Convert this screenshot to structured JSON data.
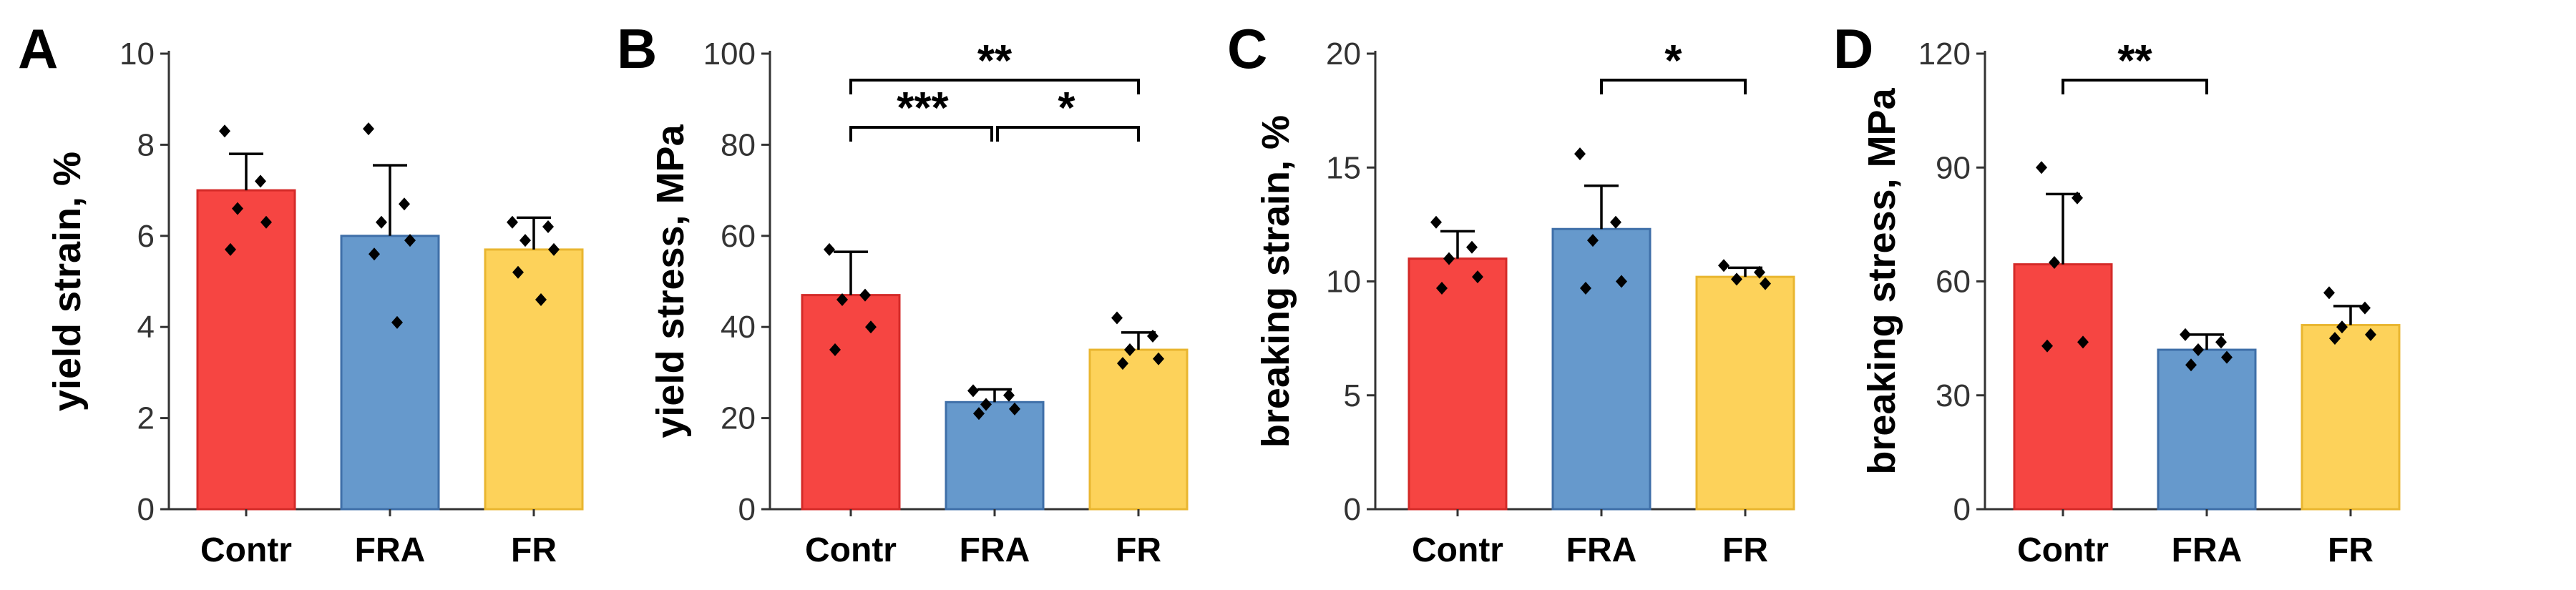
{
  "colors": {
    "Contr": "#f64542",
    "FRA": "#6699cc",
    "FR": "#fdd25a"
  },
  "edge_colors": {
    "Contr": "#d42a28",
    "FRA": "#3f6fa8",
    "FR": "#e9b630"
  },
  "chart_data": [
    {
      "type": "bar",
      "panel": "A",
      "ylabel": "yield strain, %",
      "categories": [
        "Contr",
        "FRA",
        "FR"
      ],
      "values": [
        7.0,
        6.0,
        5.7
      ],
      "errors": [
        0.8,
        1.55,
        0.7
      ],
      "ylim": [
        0,
        10
      ],
      "yticks": [
        0,
        2,
        4,
        6,
        8,
        10
      ],
      "points": [
        [
          8.3,
          7.2,
          6.6,
          6.3,
          5.7
        ],
        [
          8.35,
          6.7,
          6.3,
          5.9,
          5.6,
          4.1
        ],
        [
          6.3,
          6.2,
          5.9,
          5.7,
          5.2,
          4.6
        ]
      ],
      "significance": []
    },
    {
      "type": "bar",
      "panel": "B",
      "ylabel": "yield stress, MPa",
      "categories": [
        "Contr",
        "FRA",
        "FR"
      ],
      "values": [
        47,
        23.5,
        35
      ],
      "errors": [
        9.5,
        2.8,
        3.8
      ],
      "ylim": [
        0,
        100
      ],
      "yticks": [
        0,
        20,
        40,
        60,
        80,
        100
      ],
      "points": [
        [
          57,
          47,
          46,
          40,
          35
        ],
        [
          26,
          25,
          23,
          22,
          21
        ],
        [
          42,
          38,
          35,
          33,
          32
        ]
      ],
      "significance": [
        {
          "from": 0,
          "to": 2,
          "label": "**"
        },
        {
          "from": 0,
          "to": 1,
          "label": "***"
        },
        {
          "from": 1,
          "to": 2,
          "label": "*"
        }
      ]
    },
    {
      "type": "bar",
      "panel": "C",
      "ylabel": "breaking strain, %",
      "categories": [
        "Contr",
        "FRA",
        "FR"
      ],
      "values": [
        11.0,
        12.3,
        10.2
      ],
      "errors": [
        1.2,
        1.9,
        0.4
      ],
      "ylim": [
        0,
        20
      ],
      "yticks": [
        0,
        5,
        10,
        15,
        20
      ],
      "points": [
        [
          12.6,
          11.5,
          11.0,
          10.2,
          9.7
        ],
        [
          15.6,
          12.6,
          11.8,
          10.0,
          9.7
        ],
        [
          10.7,
          10.4,
          10.1,
          9.9
        ]
      ],
      "significance": [
        {
          "from": 1,
          "to": 2,
          "label": "*"
        }
      ]
    },
    {
      "type": "bar",
      "panel": "D",
      "ylabel": "breaking stress, MPa",
      "categories": [
        "Contr",
        "FRA",
        "FR"
      ],
      "values": [
        64.5,
        42,
        48.5
      ],
      "errors": [
        18.5,
        4,
        5
      ],
      "ylim": [
        0,
        120
      ],
      "yticks": [
        0,
        30,
        60,
        90,
        120
      ],
      "points": [
        [
          90,
          82,
          65,
          44,
          43
        ],
        [
          46,
          44,
          42,
          40,
          38
        ],
        [
          57,
          53,
          48,
          46,
          45
        ]
      ],
      "significance": [
        {
          "from": 0,
          "to": 1,
          "label": "**"
        }
      ]
    }
  ]
}
